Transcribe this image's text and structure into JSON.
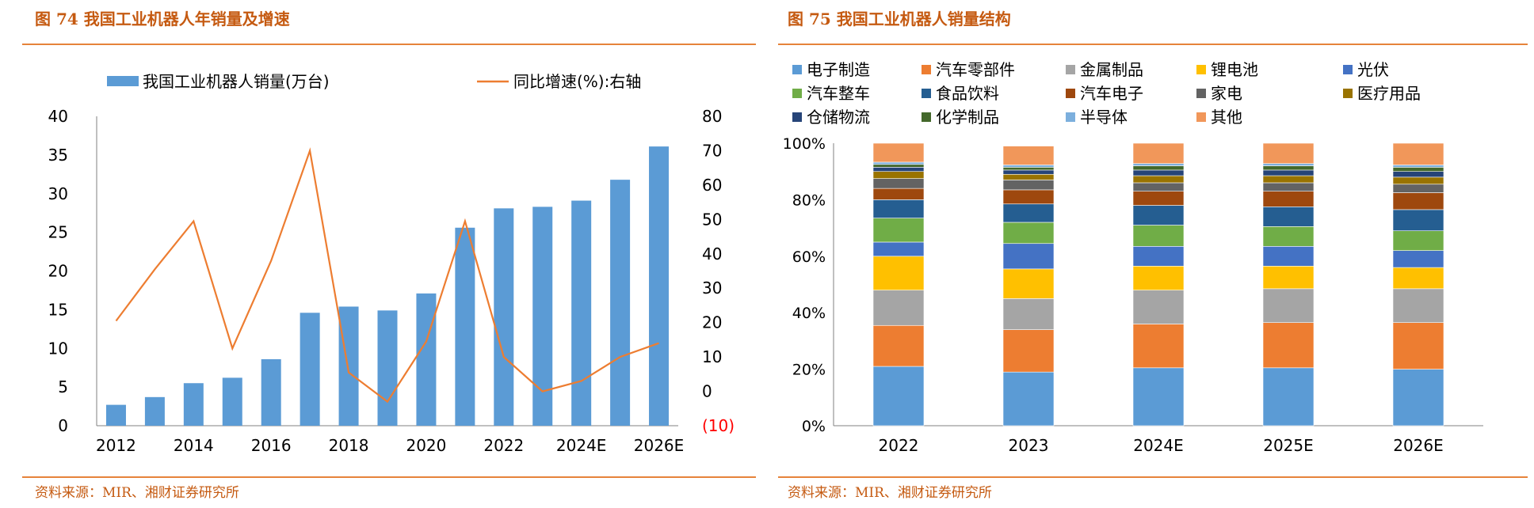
{
  "chart_data": [
    {
      "type": "bar",
      "title": "图 74 我国工业机器人年销量及增速",
      "source": "资料来源：MIR、湘财证券研究所",
      "categories": [
        "2012",
        "2013",
        "2014",
        "2015",
        "2016",
        "2017",
        "2018",
        "2019",
        "2020",
        "2021",
        "2022",
        "2023",
        "2024E",
        "2025E",
        "2026E"
      ],
      "x_tick_labels": [
        "2012",
        "2014",
        "2016",
        "2018",
        "2020",
        "2022",
        "2024E",
        "2026E"
      ],
      "series": [
        {
          "name": "我国工业机器人销量(万台)",
          "kind": "bar",
          "axis": "left",
          "color": "#5b9bd5",
          "values": [
            2.7,
            3.7,
            5.5,
            6.2,
            8.6,
            14.6,
            15.4,
            14.9,
            17.1,
            25.6,
            28.1,
            28.3,
            29.1,
            31.8,
            36.1
          ]
        },
        {
          "name": "同比增速(%):右轴",
          "kind": "line",
          "axis": "right",
          "color": "#ed7d31",
          "values": [
            20.5,
            35.5,
            49.5,
            12.5,
            38.0,
            70.0,
            5.5,
            -3.0,
            14.5,
            49.5,
            10.0,
            0.0,
            3.0,
            10.0,
            14.0
          ]
        }
      ],
      "ylim_left": [
        0,
        40
      ],
      "yticks_left": [
        "0",
        "5",
        "10",
        "15",
        "20",
        "25",
        "30",
        "35",
        "40"
      ],
      "ylim_right": [
        -10,
        80
      ],
      "yticks_right": [
        "(10)",
        "0",
        "10",
        "20",
        "30",
        "40",
        "50",
        "60",
        "70",
        "80"
      ],
      "grid": false,
      "legend": "top"
    },
    {
      "type": "bar",
      "stacked": true,
      "title": "图 75 我国工业机器人销量结构",
      "source": "资料来源：MIR、湘财证券研究所",
      "categories": [
        "2022",
        "2023",
        "2024E",
        "2025E",
        "2026E"
      ],
      "ylim": [
        0,
        100
      ],
      "yticks": [
        "0%",
        "20%",
        "40%",
        "60%",
        "80%",
        "100%"
      ],
      "grid": false,
      "legend": "top",
      "series": [
        {
          "name": "电子制造",
          "color": "#5b9bd5",
          "values": [
            21,
            19,
            20.5,
            20.5,
            20
          ]
        },
        {
          "name": "汽车零部件",
          "color": "#ed7d31",
          "values": [
            14.5,
            15,
            15.5,
            16,
            16.5
          ]
        },
        {
          "name": "金属制品",
          "color": "#a5a5a5",
          "values": [
            12.5,
            11,
            12,
            12,
            12
          ]
        },
        {
          "name": "锂电池",
          "color": "#ffc000",
          "values": [
            12,
            10.5,
            8.5,
            8,
            7.5
          ]
        },
        {
          "name": "光伏",
          "color": "#4472c4",
          "values": [
            5,
            9,
            7,
            7,
            6
          ]
        },
        {
          "name": "汽车整车",
          "color": "#70ad47",
          "values": [
            8.5,
            7.5,
            7.5,
            7,
            7
          ]
        },
        {
          "name": "食品饮料",
          "color": "#255e91",
          "values": [
            6.5,
            6.5,
            7,
            7,
            7.5
          ]
        },
        {
          "name": "汽车电子",
          "color": "#9e480e",
          "values": [
            4,
            5,
            5,
            5.5,
            6
          ]
        },
        {
          "name": "家电",
          "color": "#636363",
          "values": [
            3.5,
            3.5,
            3,
            3,
            3
          ]
        },
        {
          "name": "医疗用品",
          "color": "#997300",
          "values": [
            2.5,
            2,
            2.5,
            2.5,
            2.5
          ]
        },
        {
          "name": "仓储物流",
          "color": "#264478",
          "values": [
            1.5,
            1.5,
            2,
            2,
            2
          ]
        },
        {
          "name": "化学制品",
          "color": "#43682b",
          "values": [
            1,
            1,
            1.5,
            1.5,
            1.5
          ]
        },
        {
          "name": "半导体",
          "color": "#7cafdd",
          "values": [
            0.8,
            0.8,
            0.8,
            0.8,
            0.8
          ]
        },
        {
          "name": "其他",
          "color": "#f1975a",
          "values": [
            6.7,
            6.7,
            7.2,
            7.2,
            7.7
          ]
        }
      ]
    }
  ]
}
